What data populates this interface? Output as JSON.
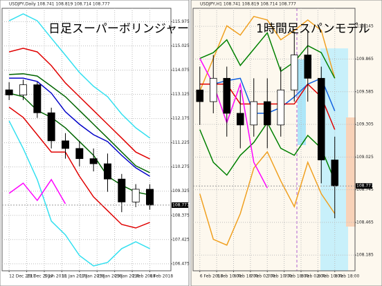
{
  "chart_data": [
    {
      "type": "candlestick",
      "title": "日足スーパーボリンジャー",
      "header": "USDJPY,Daily 108.741 108.819 108.714 108.777",
      "x": [
        0,
        1,
        2,
        3,
        4,
        5,
        6,
        7,
        8,
        9,
        10
      ],
      "xlim": [
        -0.5,
        11.5
      ],
      "xticks": [
        {
          "value": 0,
          "label": "12 Dec 2017"
        },
        {
          "value": 1.25,
          "label": "29 Dec 2017"
        },
        {
          "value": 2.5,
          "label": "5 Jan 2018"
        },
        {
          "value": 3.75,
          "label": "11 Jan 2018"
        },
        {
          "value": 5,
          "label": "17 Jan 2018"
        },
        {
          "value": 6.25,
          "label": "23 Jan 2018"
        },
        {
          "value": 7.5,
          "label": "29 Jan 2018"
        },
        {
          "value": 8.75,
          "label": "2 Feb 2018"
        },
        {
          "value": 10,
          "label": "8 Feb 2018"
        }
      ],
      "ylim": [
        106.2,
        116.5
      ],
      "yticks": [
        115.975,
        115.025,
        114.075,
        113.125,
        112.175,
        111.225,
        110.275,
        109.325,
        108.375,
        107.425,
        106.475
      ],
      "grid": true,
      "last_price": 108.777,
      "open": [
        113.3,
        113.1,
        113.5,
        112.4,
        111.3,
        111.0,
        110.6,
        110.4,
        109.8,
        108.9,
        109.4
      ],
      "close": [
        113.1,
        113.5,
        112.4,
        111.3,
        111.0,
        110.6,
        110.4,
        109.8,
        108.9,
        109.4,
        108.777
      ],
      "high": [
        113.6,
        113.7,
        113.6,
        112.6,
        111.6,
        111.3,
        111.0,
        110.8,
        110.0,
        109.6,
        109.6
      ],
      "low": [
        112.9,
        112.9,
        112.2,
        111.0,
        110.6,
        110.3,
        110.1,
        109.3,
        108.5,
        108.7,
        108.6
      ],
      "series": [
        {
          "color": "#33e0f0",
          "values": [
            116.01,
            116.28,
            116.01,
            115.33,
            114.66,
            113.98,
            113.44,
            113.03,
            112.35,
            111.81,
            111.41
          ]
        },
        {
          "color": "#e00000",
          "values": [
            114.79,
            114.93,
            114.79,
            114.25,
            113.57,
            113.03,
            112.49,
            111.95,
            111.41,
            110.86,
            110.59
          ]
        },
        {
          "color": "#006400",
          "values": [
            113.9,
            113.93,
            113.84,
            113.44,
            113.03,
            112.49,
            111.95,
            111.41,
            110.86,
            110.32,
            110.05
          ]
        },
        {
          "color": "#0000c8",
          "values": [
            113.76,
            113.76,
            113.63,
            113.17,
            112.44,
            111.95,
            111.54,
            111.27,
            110.73,
            110.24,
            109.91
          ]
        },
        {
          "color": "#006400",
          "values": [
            113.17,
            113.03,
            112.49,
            112.22,
            111.81,
            111.27,
            110.73,
            109.91,
            109.56,
            109.29,
            109.18
          ]
        },
        {
          "color": "#e00000",
          "values": [
            112.62,
            112.22,
            111.54,
            110.86,
            110.86,
            109.91,
            109.1,
            108.56,
            108.02,
            107.88,
            108.1
          ]
        },
        {
          "color": "#33e0f0",
          "values": [
            112.08,
            111.0,
            109.78,
            108.15,
            107.61,
            106.8,
            106.39,
            106.53,
            107.07,
            107.34,
            107.07
          ]
        },
        {
          "color": "#ff00ff",
          "values": [
            109.24,
            109.64,
            108.96,
            109.78,
            108.83,
            null,
            null,
            null,
            null,
            null,
            null
          ]
        }
      ]
    },
    {
      "type": "candlestick",
      "title": "1時間足スパンモデル",
      "header": "USDJPY,H1 108.741 108.819 108.714 108.777",
      "x": [
        0,
        1,
        2,
        3,
        4,
        5,
        6,
        7,
        8,
        9,
        10
      ],
      "xlim": [
        -0.5,
        11.5
      ],
      "xticks": [
        {
          "value": 0,
          "label": "6 Feb 2018"
        },
        {
          "value": 1.25,
          "label": "6 Feb 10:00"
        },
        {
          "value": 2.5,
          "label": "6 Feb 18:00"
        },
        {
          "value": 3.75,
          "label": "7 Feb 02:00"
        },
        {
          "value": 5,
          "label": "7 Feb 10:00"
        },
        {
          "value": 6.25,
          "label": "7 Feb 18:00"
        },
        {
          "value": 7.5,
          "label": "8 Feb 02:00"
        },
        {
          "value": 8.75,
          "label": "8 Feb 10:00"
        },
        {
          "value": 10,
          "label": "8 Feb 18:00"
        }
      ],
      "ylim": [
        108.05,
        110.3
      ],
      "yticks": [
        110.145,
        109.865,
        109.585,
        109.305,
        109.025,
        108.745,
        108.465,
        108.185
      ],
      "grid": true,
      "last_price": 108.777,
      "open": [
        109.6,
        109.5,
        109.7,
        109.4,
        109.3,
        109.5,
        109.3,
        109.6,
        109.9,
        109.7,
        109.0
      ],
      "close": [
        109.5,
        109.7,
        109.4,
        109.3,
        109.5,
        109.3,
        109.6,
        109.9,
        109.7,
        109.0,
        108.777
      ],
      "high": [
        109.8,
        109.9,
        109.8,
        109.6,
        109.7,
        109.7,
        109.8,
        110.1,
        110.1,
        109.8,
        109.2
      ],
      "low": [
        109.3,
        109.4,
        109.2,
        109.1,
        109.2,
        109.1,
        109.2,
        109.5,
        109.5,
        108.8,
        108.5
      ],
      "series": [
        {
          "color": "#f0a020",
          "values": [
            109.59,
            109.87,
            110.15,
            110.07,
            110.23,
            110.2,
            110.03,
            110.11,
            110.2,
            110.11,
            109.7
          ]
        },
        {
          "color": "#008000",
          "values": [
            109.87,
            109.92,
            110.03,
            109.81,
            109.95,
            110.09,
            109.76,
            109.84,
            109.98,
            109.92,
            109.7
          ]
        },
        {
          "color": "#1060e0",
          "values": [
            109.65,
            109.65,
            109.68,
            109.7,
            109.4,
            109.4,
            109.45,
            109.54,
            109.65,
            109.7,
            109.42
          ]
        },
        {
          "color": "#e00000",
          "values": [
            109.65,
            109.65,
            109.65,
            109.48,
            109.48,
            109.48,
            109.48,
            109.48,
            109.65,
            109.54,
            109.26
          ]
        },
        {
          "color": "#008000",
          "values": [
            109.26,
            108.98,
            108.87,
            109.04,
            109.15,
            109.32,
            109.1,
            109.04,
            109.21,
            109.1,
            108.82
          ]
        },
        {
          "color": "#f0a020",
          "values": [
            108.71,
            108.32,
            108.27,
            108.54,
            108.93,
            109.07,
            108.82,
            108.6,
            108.98,
            108.71,
            108.54
          ]
        },
        {
          "color": "#ff00ff",
          "values": [
            109.87,
            109.65,
            109.32,
            109.65,
            108.98,
            108.76,
            null,
            null,
            null,
            null,
            null
          ]
        }
      ]
    }
  ]
}
